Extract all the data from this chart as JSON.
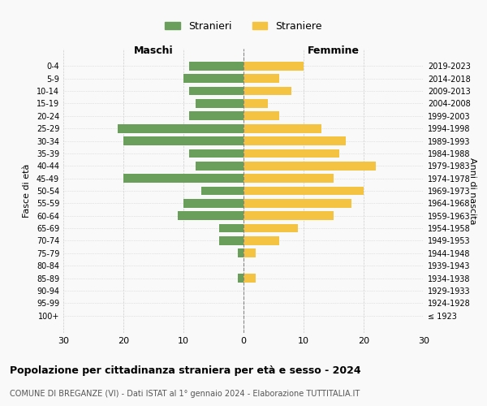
{
  "age_groups": [
    "100+",
    "95-99",
    "90-94",
    "85-89",
    "80-84",
    "75-79",
    "70-74",
    "65-69",
    "60-64",
    "55-59",
    "50-54",
    "45-49",
    "40-44",
    "35-39",
    "30-34",
    "25-29",
    "20-24",
    "15-19",
    "10-14",
    "5-9",
    "0-4"
  ],
  "birth_years": [
    "≤ 1923",
    "1924-1928",
    "1929-1933",
    "1934-1938",
    "1939-1943",
    "1944-1948",
    "1949-1953",
    "1954-1958",
    "1959-1963",
    "1964-1968",
    "1969-1973",
    "1974-1978",
    "1979-1983",
    "1984-1988",
    "1989-1993",
    "1994-1998",
    "1999-2003",
    "2004-2008",
    "2009-2013",
    "2014-2018",
    "2019-2023"
  ],
  "males": [
    0,
    0,
    0,
    1,
    0,
    1,
    4,
    4,
    11,
    10,
    7,
    20,
    8,
    9,
    20,
    21,
    9,
    8,
    9,
    10,
    9
  ],
  "females": [
    0,
    0,
    0,
    2,
    0,
    2,
    6,
    9,
    15,
    18,
    20,
    15,
    22,
    16,
    17,
    13,
    6,
    4,
    8,
    6,
    10
  ],
  "male_color": "#6a9e5b",
  "female_color": "#f5c342",
  "background_color": "#f9f9f9",
  "grid_color": "#cccccc",
  "title": "Popolazione per cittadinanza straniera per età e sesso - 2024",
  "subtitle": "COMUNE DI BREGANZE (VI) - Dati ISTAT al 1° gennaio 2024 - Elaborazione TUTTITALIA.IT",
  "xlabel_left": "Maschi",
  "xlabel_right": "Femmine",
  "ylabel_left": "Fasce di età",
  "ylabel_right": "Anni di nascita",
  "legend_male": "Stranieri",
  "legend_female": "Straniere",
  "xlim": 30
}
